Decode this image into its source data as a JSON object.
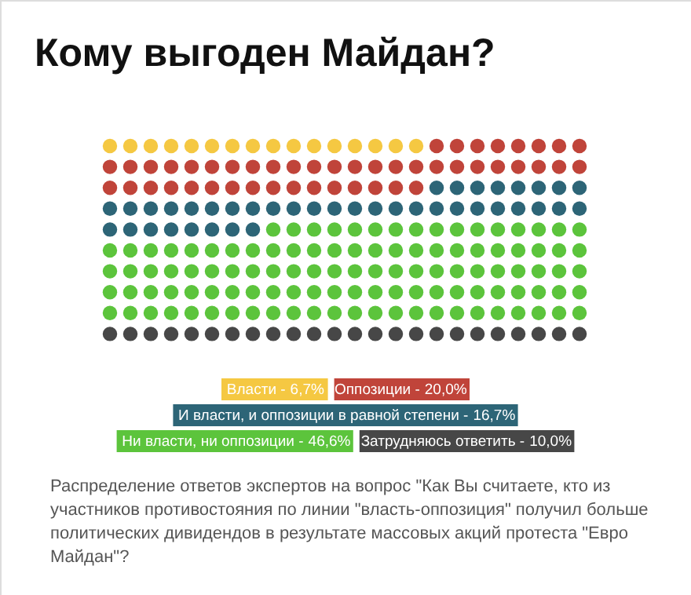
{
  "chart_data": {
    "type": "other",
    "title": "Кому выгоден Майдан?",
    "categories": [
      "Власти -",
      "Оппозиции -",
      "И власти, и оппозиции в равной степени -",
      "Ни власти, ни оппозиции -",
      "Затрудняюсь ответить -"
    ],
    "values": [
      6.7,
      20.0,
      16.7,
      46.6,
      10.0
    ],
    "value_labels": [
      "6,7%",
      "20,0%",
      "16,7%",
      "46,6%",
      "10,0%"
    ],
    "colors": [
      "#f5c842",
      "#c0443a",
      "#2d6577",
      "#5cc43c",
      "#474747"
    ],
    "annotations": [
      "Распределение ответов экспертов на вопрос \"Как Вы считаете, кто из участников противостояния по линии \"власть-оппозиция\" получил больше политических дивидендов в результате массовых акций протеста \"Евро Майдан\"?"
    ]
  }
}
